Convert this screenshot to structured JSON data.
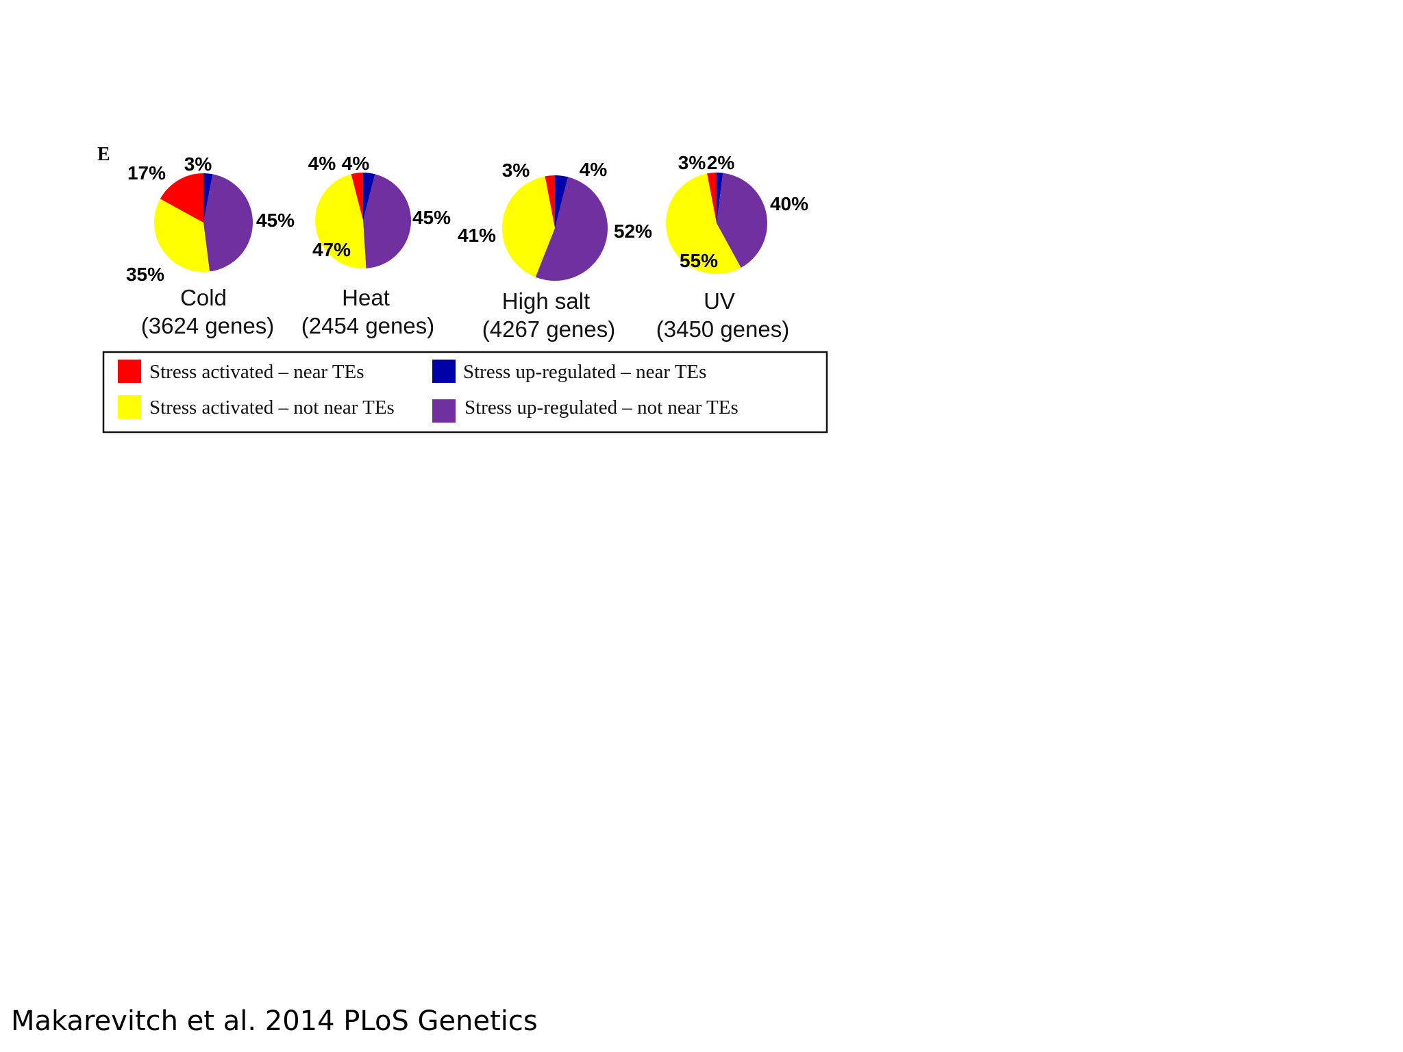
{
  "chart_data": {
    "type": "pie",
    "panel_label": "E",
    "legend": [
      {
        "key": "activated_near",
        "label": "Stress activated – near TEs",
        "color": "#ff0000"
      },
      {
        "key": "activated_not_near",
        "label": "Stress activated – not near TEs",
        "color": "#ffff00"
      },
      {
        "key": "upregulated_near",
        "label": "Stress up-regulated – near TEs",
        "color": "#0000a8"
      },
      {
        "key": "upregulated_not_near",
        "label": "Stress up-regulated – not near TEs",
        "color": "#7030a0"
      }
    ],
    "charts": [
      {
        "name": "Cold",
        "genes": "(3624 genes)",
        "slices": [
          {
            "key": "upregulated_near",
            "value": 3,
            "label": "3%"
          },
          {
            "key": "upregulated_not_near",
            "value": 45,
            "label": "45%"
          },
          {
            "key": "activated_not_near",
            "value": 35,
            "label": "35%"
          },
          {
            "key": "activated_near",
            "value": 17,
            "label": "17%"
          }
        ]
      },
      {
        "name": "Heat",
        "genes": "(2454 genes)",
        "slices": [
          {
            "key": "upregulated_near",
            "value": 4,
            "label": "4%"
          },
          {
            "key": "upregulated_not_near",
            "value": 45,
            "label": "45%"
          },
          {
            "key": "activated_not_near",
            "value": 47,
            "label": "47%"
          },
          {
            "key": "activated_near",
            "value": 4,
            "label": "4%"
          }
        ]
      },
      {
        "name": "High salt",
        "genes": "(4267 genes)",
        "slices": [
          {
            "key": "upregulated_near",
            "value": 4,
            "label": "4%"
          },
          {
            "key": "upregulated_not_near",
            "value": 52,
            "label": "52%"
          },
          {
            "key": "activated_not_near",
            "value": 41,
            "label": "41%"
          },
          {
            "key": "activated_near",
            "value": 3,
            "label": "3%"
          }
        ]
      },
      {
        "name": "UV",
        "genes": "(3450 genes)",
        "slices": [
          {
            "key": "upregulated_near",
            "value": 2,
            "label": "2%"
          },
          {
            "key": "upregulated_not_near",
            "value": 40,
            "label": "40%"
          },
          {
            "key": "activated_not_near",
            "value": 55,
            "label": "55%"
          },
          {
            "key": "activated_near",
            "value": 3,
            "label": "3%"
          }
        ]
      }
    ]
  },
  "citation": "Makarevitch et al. 2014 PLoS Genetics"
}
